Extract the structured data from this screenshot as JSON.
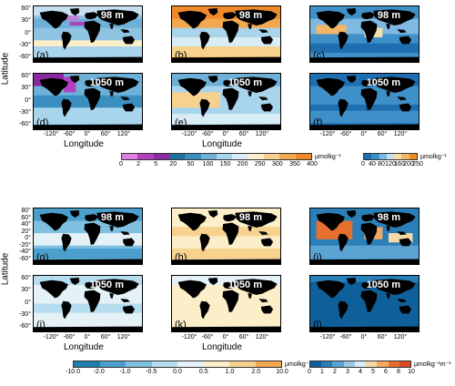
{
  "axis_labels": {
    "latitude": "Latitude",
    "longitude": "Longitude"
  },
  "lon_ticks": [
    "-120°",
    "-60°",
    "0°",
    "60°",
    "120°"
  ],
  "lat_ticks_top": [
    "60°",
    "30°",
    "0°",
    "-30°",
    "-60°"
  ],
  "lat_ticks_mid": [
    "60°",
    "30°",
    "0°",
    "-30°",
    "-60°"
  ],
  "lat_ticks_bot1": [
    "80°",
    "60°",
    "40°",
    "20°",
    "0°",
    "-20°",
    "-40°",
    "-60°"
  ],
  "lat_ticks_bot2": [
    "60°",
    "30°",
    "0°",
    "-30°",
    "-60°"
  ],
  "panels": [
    {
      "label": "(a)",
      "depth": "98 m"
    },
    {
      "label": "(b)",
      "depth": "98 m"
    },
    {
      "label": "(c)",
      "depth": "98 m"
    },
    {
      "label": "(d)",
      "depth": "1050 m"
    },
    {
      "label": "(e)",
      "depth": "1050 m"
    },
    {
      "label": "(f)",
      "depth": "1050 m"
    },
    {
      "label": "(g)",
      "depth": "98 m"
    },
    {
      "label": "(h)",
      "depth": "98 m"
    },
    {
      "label": "(i)",
      "depth": "98 m"
    },
    {
      "label": "(j)",
      "depth": "1050 m"
    },
    {
      "label": "(k)",
      "depth": "1050 m"
    },
    {
      "label": "(l)",
      "depth": "1050 m"
    }
  ],
  "colorbars": [
    {
      "ticks": [
        "0",
        "2",
        "5",
        "20",
        "50",
        "100",
        "150",
        "200",
        "250",
        "300",
        "350",
        "400"
      ],
      "unit": "μmolkg⁻¹",
      "colors": [
        "#e07fe0",
        "#b040c0",
        "#8a2aa0",
        "#1f6f9f",
        "#3a8fc0",
        "#6fb0d8",
        "#a8d4ec",
        "#d8ecf6",
        "#fbeec8",
        "#f6d28e",
        "#f2a850",
        "#ee8a2a"
      ]
    },
    {
      "ticks": [
        "0",
        "40",
        "80",
        "120",
        "160",
        "200",
        "250"
      ],
      "unit": "μmolkg⁻¹",
      "colors": [
        "#1f6fb0",
        "#3f8fc8",
        "#7fb8e0",
        "#c4e0f2",
        "#f7dfaa",
        "#f2b766",
        "#ee8a2a"
      ]
    },
    {
      "ticks": [
        "-10.0",
        "-2.0",
        "-1.0",
        "-0.5",
        "0.0",
        "0.5",
        "1.0",
        "2.0",
        "10.0"
      ],
      "unit": "μmolkg⁻¹m⁻¹",
      "colors": [
        "#1f7fb0",
        "#4a9fcc",
        "#7fbfe0",
        "#b6dcef",
        "#e4f2f8",
        "#fbeec8",
        "#f6d28e",
        "#f2a850"
      ]
    },
    {
      "ticks": [
        "0",
        "1",
        "2",
        "3",
        "4",
        "5",
        "6",
        "8",
        "10"
      ],
      "unit": "μmolkg⁻¹m⁻¹",
      "colors": [
        "#0f5f9a",
        "#2a7fb8",
        "#5aa3d2",
        "#9ac8e6",
        "#d8ecf6",
        "#f7d9a8",
        "#f2a860",
        "#e8702f",
        "#d84822"
      ]
    }
  ]
}
